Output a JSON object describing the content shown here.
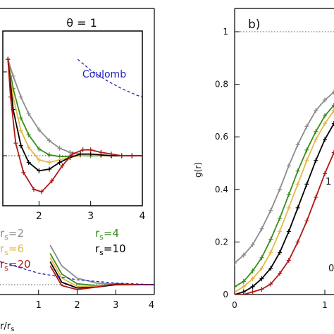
{
  "chart_data": [
    {
      "type": "line",
      "panel": "left",
      "title": "θ = 1",
      "xlabel": "r/r_s",
      "ylabel": "",
      "xlim": [
        0,
        4
      ],
      "xticks": [
        "1",
        "2",
        "3",
        "4"
      ],
      "legend": [
        {
          "label": "rs=2",
          "color": "#8c8c8c"
        },
        {
          "label": "rs=4",
          "color": "#3a8c1e"
        },
        {
          "label": "rs=6",
          "color": "#e6b84a"
        },
        {
          "label": "rs=10",
          "color": "#000000"
        },
        {
          "label": "rs=20",
          "color": "#b01818"
        }
      ],
      "series": [
        {
          "name": "rs=2",
          "color": "#8c8c8c",
          "x": [
            1.3,
            1.6,
            2.0,
            2.5,
            3.0,
            3.5,
            4.0
          ],
          "y": [
            0.12,
            0.07,
            0.04,
            0.028,
            0.025,
            0.024,
            0.024
          ]
        },
        {
          "name": "rs=4",
          "color": "#3a8c1e",
          "x": [
            1.3,
            1.6,
            2.0,
            2.5,
            3.0,
            3.5,
            4.0
          ],
          "y": [
            0.1,
            0.05,
            0.026,
            0.022,
            0.024,
            0.024,
            0.024
          ]
        },
        {
          "name": "rs=6",
          "color": "#e6b84a",
          "x": [
            1.3,
            1.6,
            2.0,
            2.5,
            3.0,
            3.5,
            4.0
          ],
          "y": [
            0.09,
            0.04,
            0.02,
            0.02,
            0.024,
            0.024,
            0.024
          ]
        },
        {
          "name": "rs=10",
          "color": "#000000",
          "x": [
            1.3,
            1.6,
            2.0,
            2.5,
            3.0,
            3.5,
            4.0
          ],
          "y": [
            0.08,
            0.03,
            0.016,
            0.018,
            0.024,
            0.024,
            0.024
          ]
        },
        {
          "name": "rs=20",
          "color": "#b01818",
          "x": [
            1.3,
            1.6,
            2.0,
            2.5,
            3.0,
            3.5,
            4.0
          ],
          "y": [
            0.07,
            0.022,
            0.012,
            0.018,
            0.026,
            0.024,
            0.024
          ]
        },
        {
          "name": "Coulomb",
          "color": "#2020c0",
          "x": [
            0.0,
            1.0,
            2.0,
            3.0,
            4.0
          ],
          "y": [
            0.08,
            0.052,
            0.036,
            0.028,
            0.024
          ]
        }
      ]
    },
    {
      "type": "line",
      "panel": "inset",
      "annotation": "Coulomb",
      "xlim": [
        1.3,
        4.0
      ],
      "ylim": [
        -0.45,
        1.15
      ],
      "xticks": [
        "2",
        "3",
        "4"
      ],
      "series": [
        {
          "name": "rs=2",
          "color": "#8c8c8c",
          "x": [
            1.4,
            1.5,
            1.65,
            1.8,
            2.0,
            2.2,
            2.4,
            2.6,
            2.8,
            3.0,
            3.2,
            3.4,
            3.6,
            3.8,
            4.0
          ],
          "y": [
            1.15,
            0.95,
            0.7,
            0.5,
            0.31,
            0.18,
            0.09,
            0.04,
            0.02,
            0.0,
            0.0,
            0.0,
            0.0,
            0.0,
            0.0
          ]
        },
        {
          "name": "rs=4",
          "color": "#3a8c1e",
          "x": [
            1.4,
            1.5,
            1.65,
            1.8,
            2.0,
            2.2,
            2.4,
            2.6,
            2.8,
            3.0,
            3.2,
            3.4,
            3.6,
            3.8,
            4.0
          ],
          "y": [
            1.15,
            0.8,
            0.45,
            0.25,
            0.08,
            0.01,
            -0.01,
            -0.01,
            0.0,
            0.0,
            0.0,
            0.0,
            0.0,
            0.0,
            0.0
          ]
        },
        {
          "name": "rs=6",
          "color": "#e6b84a",
          "x": [
            1.4,
            1.5,
            1.65,
            1.8,
            2.0,
            2.2,
            2.4,
            2.6,
            2.8,
            3.0,
            3.2,
            3.4,
            3.6,
            3.8,
            4.0
          ],
          "y": [
            1.15,
            0.7,
            0.3,
            0.1,
            -0.05,
            -0.08,
            -0.05,
            -0.02,
            0.0,
            0.01,
            0.0,
            0.0,
            0.0,
            0.0,
            0.0
          ]
        },
        {
          "name": "rs=10",
          "color": "#000000",
          "x": [
            1.4,
            1.5,
            1.65,
            1.8,
            2.0,
            2.2,
            2.4,
            2.6,
            2.8,
            3.0,
            3.2,
            3.4,
            3.6,
            3.8,
            4.0
          ],
          "y": [
            1.15,
            0.55,
            0.12,
            -0.08,
            -0.18,
            -0.16,
            -0.08,
            -0.02,
            0.02,
            0.02,
            0.01,
            0.0,
            0.0,
            0.0,
            0.0
          ]
        },
        {
          "name": "rs=20",
          "color": "#b01818",
          "x": [
            1.4,
            1.45,
            1.55,
            1.7,
            1.9,
            2.05,
            2.25,
            2.45,
            2.65,
            2.85,
            3.0,
            3.2,
            3.4,
            3.6,
            3.8,
            4.0
          ],
          "y": [
            1.15,
            0.7,
            0.15,
            -0.2,
            -0.4,
            -0.43,
            -0.3,
            -0.12,
            0.02,
            0.07,
            0.07,
            0.04,
            0.02,
            0.0,
            0.0,
            0.0
          ]
        },
        {
          "name": "Coulomb",
          "color": "#2020c0",
          "x": [
            2.75,
            3.0,
            3.3,
            3.6,
            3.9,
            4.0
          ],
          "y": [
            1.15,
            1.02,
            0.9,
            0.8,
            0.72,
            0.7
          ]
        }
      ]
    },
    {
      "type": "line",
      "panel": "right",
      "title": "b)",
      "xlabel": "",
      "ylabel": "g(r)",
      "xlim": [
        0,
        1.2
      ],
      "ylim": [
        0,
        1.1
      ],
      "xticks": [
        "0",
        "1"
      ],
      "yticks": [
        "0",
        "0.2",
        "0.4",
        "0.6",
        "0.8",
        "1"
      ],
      "annotations": [
        "1",
        "0"
      ],
      "series": [
        {
          "name": "rs=2",
          "color": "#8c8c8c",
          "x": [
            0.0,
            0.1,
            0.2,
            0.3,
            0.4,
            0.5,
            0.6,
            0.7,
            0.8,
            0.9,
            1.0,
            1.1,
            1.2
          ],
          "y": [
            0.12,
            0.15,
            0.19,
            0.25,
            0.32,
            0.4,
            0.49,
            0.57,
            0.64,
            0.7,
            0.74,
            0.77,
            0.79
          ]
        },
        {
          "name": "rs=4",
          "color": "#3a8c1e",
          "x": [
            0.0,
            0.1,
            0.2,
            0.3,
            0.4,
            0.5,
            0.6,
            0.7,
            0.8,
            0.9,
            1.0,
            1.1,
            1.2
          ],
          "y": [
            0.03,
            0.05,
            0.09,
            0.14,
            0.21,
            0.29,
            0.38,
            0.47,
            0.55,
            0.62,
            0.68,
            0.72,
            0.75
          ]
        },
        {
          "name": "rs=6",
          "color": "#e6b84a",
          "x": [
            0.0,
            0.1,
            0.2,
            0.3,
            0.4,
            0.5,
            0.6,
            0.7,
            0.8,
            0.9,
            1.0,
            1.1,
            1.2
          ],
          "y": [
            0.01,
            0.03,
            0.06,
            0.1,
            0.16,
            0.24,
            0.33,
            0.42,
            0.51,
            0.59,
            0.65,
            0.7,
            0.73
          ]
        },
        {
          "name": "rs=10",
          "color": "#000000",
          "x": [
            0.0,
            0.1,
            0.2,
            0.3,
            0.4,
            0.5,
            0.6,
            0.7,
            0.8,
            0.9,
            1.0,
            1.1,
            1.2
          ],
          "y": [
            0.0,
            0.01,
            0.03,
            0.06,
            0.1,
            0.16,
            0.24,
            0.33,
            0.42,
            0.51,
            0.59,
            0.65,
            0.7
          ]
        },
        {
          "name": "rs=20",
          "color": "#b01818",
          "x": [
            0.0,
            0.1,
            0.2,
            0.3,
            0.4,
            0.5,
            0.6,
            0.7,
            0.8,
            0.9,
            1.0,
            1.1,
            1.2
          ],
          "y": [
            0.0,
            0.0,
            0.01,
            0.02,
            0.04,
            0.08,
            0.13,
            0.2,
            0.28,
            0.37,
            0.46,
            0.54,
            0.6
          ]
        }
      ]
    }
  ]
}
